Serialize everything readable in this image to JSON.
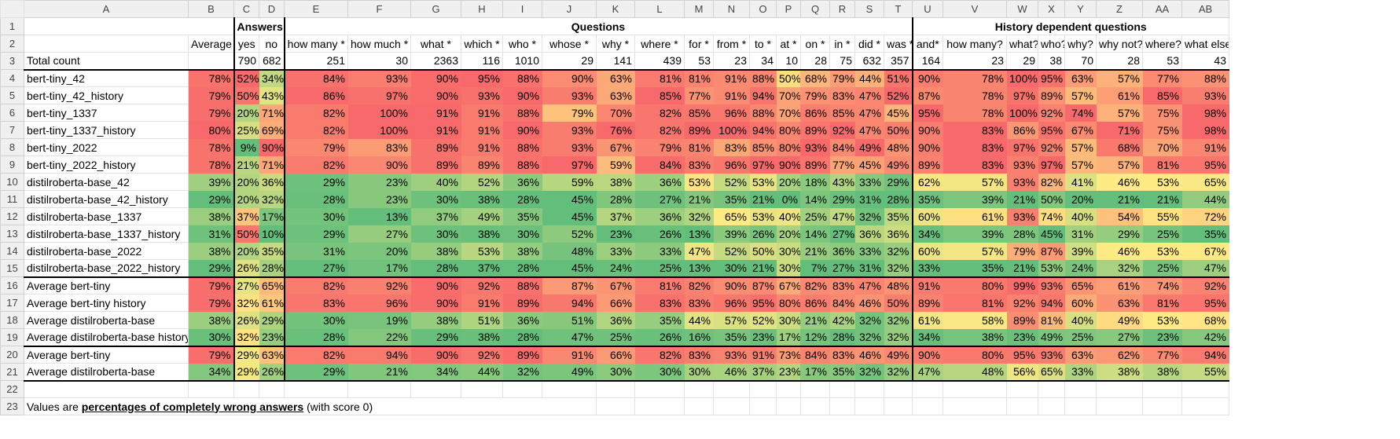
{
  "columns": [
    "A",
    "B",
    "C",
    "D",
    "E",
    "F",
    "G",
    "H",
    "I",
    "J",
    "K",
    "L",
    "M",
    "N",
    "O",
    "P",
    "Q",
    "R",
    "S",
    "T",
    "U",
    "V",
    "W",
    "X",
    "Y",
    "Z",
    "AA",
    "AB"
  ],
  "row_numbers": [
    "1",
    "2",
    "3",
    "4",
    "5",
    "6",
    "7",
    "8",
    "9",
    "10",
    "11",
    "12",
    "13",
    "14",
    "15",
    "16",
    "17",
    "18",
    "19",
    "20",
    "21",
    "22",
    "23"
  ],
  "groups": {
    "answers": "Answers",
    "questions": "Questions",
    "history": "History dependent questions"
  },
  "headers": [
    "",
    "Average",
    "yes",
    "no",
    "how many *",
    "how much *",
    "what *",
    "which *",
    "who *",
    "whose *",
    "why *",
    "where *",
    "for *",
    "from *",
    "to *",
    "at *",
    "on *",
    "in *",
    "did *",
    "was *",
    "and*",
    "how many?",
    "what?",
    "who?",
    "why?",
    "why not?",
    "where?",
    "what else*"
  ],
  "total": {
    "label": "Total count",
    "values": [
      "",
      "790",
      "682",
      "251",
      "30",
      "2363",
      "116",
      "1010",
      "29",
      "141",
      "439",
      "53",
      "23",
      "34",
      "10",
      "28",
      "75",
      "632",
      "357",
      "164",
      "23",
      "29",
      "38",
      "70",
      "28",
      "53",
      "43"
    ]
  },
  "rows": [
    {
      "label": "bert-tiny_42",
      "values": [
        "78%",
        "52%",
        "34%",
        "84%",
        "93%",
        "90%",
        "95%",
        "88%",
        "90%",
        "63%",
        "81%",
        "81%",
        "91%",
        "88%",
        "50%",
        "68%",
        "79%",
        "44%",
        "51%",
        "90%",
        "78%",
        "100%",
        "95%",
        "63%",
        "57%",
        "77%",
        "88%"
      ]
    },
    {
      "label": "bert-tiny_42_history",
      "values": [
        "79%",
        "50%",
        "43%",
        "86%",
        "97%",
        "90%",
        "93%",
        "90%",
        "93%",
        "63%",
        "85%",
        "77%",
        "91%",
        "94%",
        "70%",
        "79%",
        "83%",
        "47%",
        "52%",
        "87%",
        "78%",
        "97%",
        "89%",
        "57%",
        "61%",
        "85%",
        "93%"
      ]
    },
    {
      "label": "bert-tiny_1337",
      "values": [
        "79%",
        "20%",
        "71%",
        "82%",
        "100%",
        "91%",
        "91%",
        "88%",
        "79%",
        "70%",
        "82%",
        "85%",
        "96%",
        "88%",
        "70%",
        "86%",
        "85%",
        "47%",
        "45%",
        "95%",
        "78%",
        "100%",
        "92%",
        "74%",
        "57%",
        "75%",
        "98%"
      ]
    },
    {
      "label": "bert-tiny_1337_history",
      "values": [
        "80%",
        "25%",
        "69%",
        "82%",
        "100%",
        "91%",
        "91%",
        "90%",
        "93%",
        "76%",
        "82%",
        "89%",
        "100%",
        "94%",
        "80%",
        "89%",
        "92%",
        "47%",
        "50%",
        "90%",
        "83%",
        "86%",
        "95%",
        "67%",
        "71%",
        "75%",
        "98%"
      ]
    },
    {
      "label": "bert-tiny_2022",
      "values": [
        "78%",
        "9%",
        "90%",
        "79%",
        "83%",
        "89%",
        "91%",
        "88%",
        "93%",
        "67%",
        "79%",
        "81%",
        "83%",
        "85%",
        "80%",
        "93%",
        "84%",
        "49%",
        "48%",
        "90%",
        "83%",
        "97%",
        "92%",
        "57%",
        "68%",
        "70%",
        "91%"
      ]
    },
    {
      "label": "bert-tiny_2022_history",
      "values": [
        "78%",
        "21%",
        "71%",
        "82%",
        "90%",
        "89%",
        "89%",
        "88%",
        "97%",
        "59%",
        "84%",
        "83%",
        "96%",
        "97%",
        "90%",
        "89%",
        "77%",
        "45%",
        "49%",
        "89%",
        "83%",
        "93%",
        "97%",
        "57%",
        "57%",
        "81%",
        "95%"
      ]
    },
    {
      "label": "distilroberta-base_42",
      "values": [
        "39%",
        "20%",
        "36%",
        "29%",
        "23%",
        "40%",
        "52%",
        "36%",
        "59%",
        "38%",
        "36%",
        "53%",
        "52%",
        "53%",
        "20%",
        "18%",
        "43%",
        "33%",
        "29%",
        "62%",
        "57%",
        "93%",
        "82%",
        "41%",
        "46%",
        "53%",
        "65%"
      ]
    },
    {
      "label": "distilroberta-base_42_history",
      "values": [
        "29%",
        "20%",
        "32%",
        "28%",
        "23%",
        "30%",
        "38%",
        "28%",
        "45%",
        "28%",
        "27%",
        "21%",
        "35%",
        "21%",
        "0%",
        "14%",
        "29%",
        "31%",
        "28%",
        "35%",
        "39%",
        "21%",
        "50%",
        "20%",
        "21%",
        "21%",
        "44%"
      ]
    },
    {
      "label": "distilroberta-base_1337",
      "values": [
        "38%",
        "37%",
        "17%",
        "30%",
        "13%",
        "37%",
        "49%",
        "35%",
        "45%",
        "37%",
        "36%",
        "32%",
        "65%",
        "53%",
        "40%",
        "25%",
        "47%",
        "32%",
        "35%",
        "60%",
        "61%",
        "93%",
        "74%",
        "40%",
        "54%",
        "55%",
        "72%"
      ]
    },
    {
      "label": "distilroberta-base_1337_history",
      "values": [
        "31%",
        "50%",
        "10%",
        "29%",
        "27%",
        "30%",
        "38%",
        "30%",
        "52%",
        "23%",
        "26%",
        "13%",
        "39%",
        "26%",
        "20%",
        "14%",
        "27%",
        "36%",
        "36%",
        "34%",
        "39%",
        "28%",
        "45%",
        "31%",
        "29%",
        "25%",
        "35%"
      ]
    },
    {
      "label": "distilroberta-base_2022",
      "values": [
        "38%",
        "20%",
        "35%",
        "31%",
        "20%",
        "38%",
        "53%",
        "38%",
        "48%",
        "33%",
        "33%",
        "47%",
        "52%",
        "50%",
        "30%",
        "21%",
        "36%",
        "33%",
        "32%",
        "60%",
        "57%",
        "79%",
        "87%",
        "39%",
        "46%",
        "53%",
        "67%"
      ]
    },
    {
      "label": "distilroberta-base_2022_history",
      "values": [
        "29%",
        "26%",
        "28%",
        "27%",
        "17%",
        "28%",
        "37%",
        "28%",
        "45%",
        "24%",
        "25%",
        "13%",
        "30%",
        "21%",
        "30%",
        "7%",
        "27%",
        "31%",
        "32%",
        "33%",
        "35%",
        "21%",
        "53%",
        "24%",
        "32%",
        "25%",
        "47%"
      ]
    },
    {
      "label": "Average bert-tiny",
      "values": [
        "79%",
        "27%",
        "65%",
        "82%",
        "92%",
        "90%",
        "92%",
        "88%",
        "87%",
        "67%",
        "81%",
        "82%",
        "90%",
        "87%",
        "67%",
        "82%",
        "83%",
        "47%",
        "48%",
        "91%",
        "80%",
        "99%",
        "93%",
        "65%",
        "61%",
        "74%",
        "92%"
      ]
    },
    {
      "label": "Average bert-tiny history",
      "values": [
        "79%",
        "32%",
        "61%",
        "83%",
        "96%",
        "90%",
        "91%",
        "89%",
        "94%",
        "66%",
        "83%",
        "83%",
        "96%",
        "95%",
        "80%",
        "86%",
        "84%",
        "46%",
        "50%",
        "89%",
        "81%",
        "92%",
        "94%",
        "60%",
        "63%",
        "81%",
        "95%"
      ]
    },
    {
      "label": "Average distilroberta-base",
      "values": [
        "38%",
        "26%",
        "29%",
        "30%",
        "19%",
        "38%",
        "51%",
        "36%",
        "51%",
        "36%",
        "35%",
        "44%",
        "57%",
        "52%",
        "30%",
        "21%",
        "42%",
        "32%",
        "32%",
        "61%",
        "58%",
        "89%",
        "81%",
        "40%",
        "49%",
        "53%",
        "68%"
      ]
    },
    {
      "label": "Average distilroberta-base history",
      "values": [
        "30%",
        "32%",
        "23%",
        "28%",
        "22%",
        "29%",
        "38%",
        "28%",
        "47%",
        "25%",
        "26%",
        "16%",
        "35%",
        "23%",
        "17%",
        "12%",
        "28%",
        "32%",
        "32%",
        "34%",
        "38%",
        "23%",
        "49%",
        "25%",
        "27%",
        "23%",
        "42%"
      ]
    },
    {
      "label": "Average bert-tiny",
      "values": [
        "79%",
        "29%",
        "63%",
        "82%",
        "94%",
        "90%",
        "92%",
        "89%",
        "91%",
        "66%",
        "82%",
        "83%",
        "93%",
        "91%",
        "73%",
        "84%",
        "83%",
        "46%",
        "49%",
        "90%",
        "80%",
        "95%",
        "93%",
        "63%",
        "62%",
        "77%",
        "94%"
      ]
    },
    {
      "label": "Average distilroberta-base",
      "values": [
        "34%",
        "29%",
        "26%",
        "29%",
        "21%",
        "34%",
        "44%",
        "32%",
        "49%",
        "30%",
        "30%",
        "30%",
        "46%",
        "37%",
        "23%",
        "17%",
        "35%",
        "32%",
        "32%",
        "47%",
        "48%",
        "56%",
        "65%",
        "33%",
        "38%",
        "38%",
        "55%"
      ]
    }
  ],
  "note": {
    "before": "Values are ",
    "emph": "percentages of completely wrong answers",
    "after": " (with score 0)"
  },
  "scale_colors": {
    "low": "#63be7b",
    "mid": "#ffeb84",
    "high": "#f8696b"
  }
}
